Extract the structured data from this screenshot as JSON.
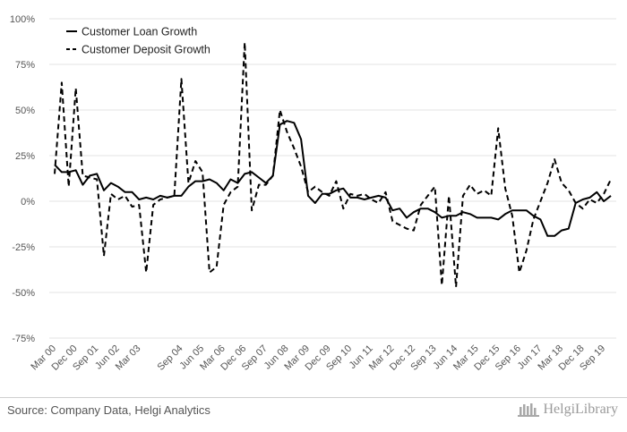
{
  "chart_data": {
    "type": "line",
    "x": [
      "Mar 00",
      "Jun 00",
      "Sep 00",
      "Dec 00",
      "Mar 01",
      "Jun 01",
      "Sep 01",
      "Dec 01",
      "Mar 02",
      "Jun 02",
      "Sep 02",
      "Dec 02",
      "Mar 03",
      "Jun 03",
      "Sep 03",
      "Dec 03",
      "Mar 04",
      "Jun 04",
      "Sep 04",
      "Dec 04",
      "Mar 05",
      "Jun 05",
      "Sep 05",
      "Dec 05",
      "Mar 06",
      "Jun 06",
      "Sep 06",
      "Dec 06",
      "Mar 07",
      "Jun 07",
      "Sep 07",
      "Dec 07",
      "Mar 08",
      "Jun 08",
      "Sep 08",
      "Dec 08",
      "Mar 09",
      "Jun 09",
      "Sep 09",
      "Dec 09",
      "Mar 10",
      "Jun 10",
      "Sep 10",
      "Dec 10",
      "Mar 11",
      "Jun 11",
      "Sep 11",
      "Dec 11",
      "Mar 12",
      "Jun 12",
      "Sep 12",
      "Dec 12",
      "Mar 13",
      "Jun 13",
      "Sep 13",
      "Dec 13",
      "Mar 14",
      "Jun 14",
      "Sep 14",
      "Dec 14",
      "Mar 15",
      "Jun 15",
      "Sep 15",
      "Dec 15",
      "Mar 16",
      "Jun 16",
      "Sep 16",
      "Dec 16",
      "Mar 17",
      "Jun 17",
      "Sep 17",
      "Dec 17",
      "Mar 18",
      "Jun 18",
      "Sep 18",
      "Dec 18",
      "Mar 19",
      "Jun 19",
      "Sep 19",
      "Dec 19"
    ],
    "tick_labels": [
      "Mar 00",
      "Dec 00",
      "Sep 01",
      "Jun 02",
      "Mar 03",
      "Sep 04",
      "Jun 05",
      "Mar 06",
      "Dec 06",
      "Sep 07",
      "Jun 08",
      "Mar 09",
      "Dec 09",
      "Sep 10",
      "Jun 11",
      "Mar 12",
      "Dec 12",
      "Sep 13",
      "Jun 14",
      "Mar 15",
      "Dec 15",
      "Sep 16",
      "Jun 17",
      "Mar 18",
      "Dec 18",
      "Sep 19"
    ],
    "y_ticks": [
      "100%",
      "75%",
      "50%",
      "25%",
      "0%",
      "-25%",
      "-50%",
      "-75%"
    ],
    "ylim": [
      -75,
      100
    ],
    "grid": "horizontal",
    "legend_position": "top-left",
    "series": [
      {
        "name": "Customer Loan Growth",
        "style": "solid",
        "values": [
          20,
          16,
          16,
          17,
          9,
          14,
          15,
          6,
          10,
          8,
          5,
          5,
          1,
          2,
          1,
          3,
          2,
          3,
          3,
          8,
          11,
          11,
          12,
          10,
          6,
          12,
          10,
          15,
          16,
          13,
          10,
          14,
          42,
          44,
          43,
          34,
          3,
          -1,
          4,
          4,
          6,
          7,
          2,
          2,
          1,
          2,
          3,
          2,
          -5,
          -4,
          -9,
          -6,
          -4,
          -4,
          -6,
          -9,
          -8,
          -8,
          -6,
          -7,
          -9,
          -9,
          -9,
          -10,
          -7,
          -5,
          -5,
          -5,
          -8,
          -10,
          -19,
          -19,
          -16,
          -15,
          -1,
          1,
          2,
          5,
          0,
          3
        ],
        "color": "#000000"
      },
      {
        "name": "Customer Deposit Growth",
        "style": "dashed",
        "values": [
          15,
          65,
          8,
          62,
          14,
          13,
          12,
          -30,
          4,
          1,
          3,
          -3,
          -2,
          -39,
          -2,
          1,
          2,
          3,
          67,
          10,
          22,
          16,
          -39,
          -36,
          -2,
          5,
          8,
          87,
          -5,
          9,
          9,
          14,
          50,
          38,
          29,
          19,
          5,
          8,
          5,
          3,
          11,
          -4,
          4,
          3,
          4,
          1,
          -1,
          5,
          -11,
          -13,
          -15,
          -16,
          -2,
          3,
          8,
          -46,
          3,
          -47,
          3,
          9,
          4,
          6,
          3,
          40,
          7,
          -8,
          -39,
          -27,
          -10,
          0,
          10,
          23,
          10,
          6,
          -1,
          -4,
          1,
          -1,
          4,
          12
        ],
        "color": "#000000"
      }
    ]
  },
  "footer": {
    "source": "Source: Company Data, Helgi Analytics",
    "brand": "HelgiLibrary"
  }
}
